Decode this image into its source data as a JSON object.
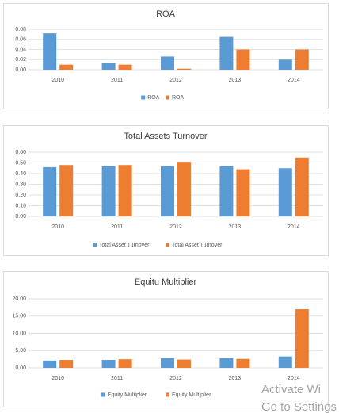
{
  "chart_data": [
    {
      "type": "bar",
      "title": "ROA",
      "categories": [
        "2010",
        "2011",
        "2012",
        "2013",
        "2014"
      ],
      "series": [
        {
          "name": "ROA",
          "color": "#5b9bd5",
          "values": [
            0.072,
            0.013,
            0.026,
            0.065,
            0.02
          ]
        },
        {
          "name": "ROA",
          "color": "#ed7d31",
          "values": [
            0.01,
            0.01,
            0.002,
            0.04,
            0.04
          ]
        }
      ],
      "ylim": [
        0,
        0.08
      ],
      "yticks": [
        {
          "value": 0,
          "label": "0.00"
        },
        {
          "value": 0.02,
          "label": "0.02"
        },
        {
          "value": 0.04,
          "label": "0.04"
        },
        {
          "value": 0.06,
          "label": "0.06"
        },
        {
          "value": 0.08,
          "label": "0.08"
        }
      ],
      "grid": true
    },
    {
      "type": "bar",
      "title": "Total Assets Turnover",
      "categories": [
        "2010",
        "2011",
        "2012",
        "2013",
        "2014"
      ],
      "series": [
        {
          "name": "Total Asset Turnover",
          "color": "#5b9bd5",
          "values": [
            0.46,
            0.47,
            0.47,
            0.47,
            0.45
          ]
        },
        {
          "name": "Total Asset Turnover",
          "color": "#ed7d31",
          "values": [
            0.48,
            0.48,
            0.51,
            0.44,
            0.55
          ]
        }
      ],
      "ylim": [
        0,
        0.6
      ],
      "yticks": [
        {
          "value": 0,
          "label": "0.00"
        },
        {
          "value": 0.1,
          "label": "0.10"
        },
        {
          "value": 0.2,
          "label": "0.20"
        },
        {
          "value": 0.3,
          "label": "0.30"
        },
        {
          "value": 0.4,
          "label": "0.40"
        },
        {
          "value": 0.5,
          "label": "0.50"
        },
        {
          "value": 0.6,
          "label": "0.60"
        }
      ],
      "grid": true
    },
    {
      "type": "bar",
      "title": "Equitu Multiplier",
      "categories": [
        "2010",
        "2011",
        "2012",
        "2013",
        "2014"
      ],
      "series": [
        {
          "name": "Equity Multiplier",
          "color": "#5b9bd5",
          "values": [
            2.1,
            2.3,
            2.8,
            2.8,
            3.3
          ]
        },
        {
          "name": "Equity Multiplier",
          "color": "#ed7d31",
          "values": [
            2.3,
            2.5,
            2.4,
            2.6,
            17.0
          ]
        }
      ],
      "ylim": [
        0,
        20
      ],
      "yticks": [
        {
          "value": 0,
          "label": "0.00"
        },
        {
          "value": 5,
          "label": "5.00"
        },
        {
          "value": 10,
          "label": "10.00"
        },
        {
          "value": 15,
          "label": "15.00"
        },
        {
          "value": 20,
          "label": "20.00"
        }
      ],
      "grid": true
    }
  ],
  "watermark": {
    "line1": "Activate Wi",
    "line2": "Go to Settings"
  }
}
